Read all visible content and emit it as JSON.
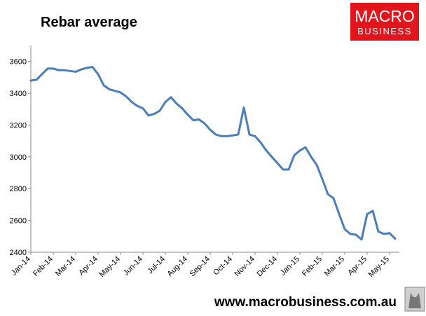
{
  "chart_data": {
    "type": "line",
    "title": "Rebar average",
    "categories": [
      "Jan-14",
      null,
      null,
      null,
      "Feb-14",
      null,
      null,
      null,
      "Mar-14",
      null,
      null,
      null,
      "Apr-14",
      null,
      null,
      null,
      "May-14",
      null,
      null,
      null,
      "Jun-14",
      null,
      null,
      null,
      "Jul-14",
      null,
      null,
      null,
      "Aug-14",
      null,
      null,
      null,
      "Sep-14",
      null,
      null,
      null,
      "Oct-14",
      null,
      null,
      null,
      "Nov-14",
      null,
      null,
      null,
      "Dec-14",
      null,
      null,
      null,
      "Jan-15",
      null,
      null,
      null,
      "Feb-15",
      null,
      null,
      null,
      "Mar-15",
      null,
      null,
      null,
      "Apr-15",
      null,
      null,
      null,
      "May-15",
      null
    ],
    "values": [
      3480,
      3485,
      3520,
      3555,
      3555,
      3545,
      3545,
      3540,
      3535,
      3550,
      3560,
      3565,
      3520,
      3450,
      3425,
      3415,
      3405,
      3380,
      3345,
      3320,
      3305,
      3260,
      3270,
      3290,
      3345,
      3375,
      3335,
      3305,
      3265,
      3230,
      3235,
      3210,
      3170,
      3140,
      3130,
      3130,
      3135,
      3140,
      3310,
      3140,
      3130,
      3090,
      3040,
      3000,
      2960,
      2920,
      2920,
      3010,
      3040,
      3060,
      3000,
      2950,
      2860,
      2765,
      2740,
      2640,
      2545,
      2515,
      2510,
      2480,
      2640,
      2660,
      2530,
      2515,
      2520,
      2485
    ],
    "color": "#4a7ebb",
    "ylim": [
      2400,
      3700
    ],
    "yticks": [
      2400,
      2600,
      2800,
      3000,
      3200,
      3400,
      3600
    ],
    "grid": false
  },
  "logo": {
    "line1": "MACRO",
    "line2": "BUSINESS"
  },
  "footer": "www.macrobusiness.com.au"
}
